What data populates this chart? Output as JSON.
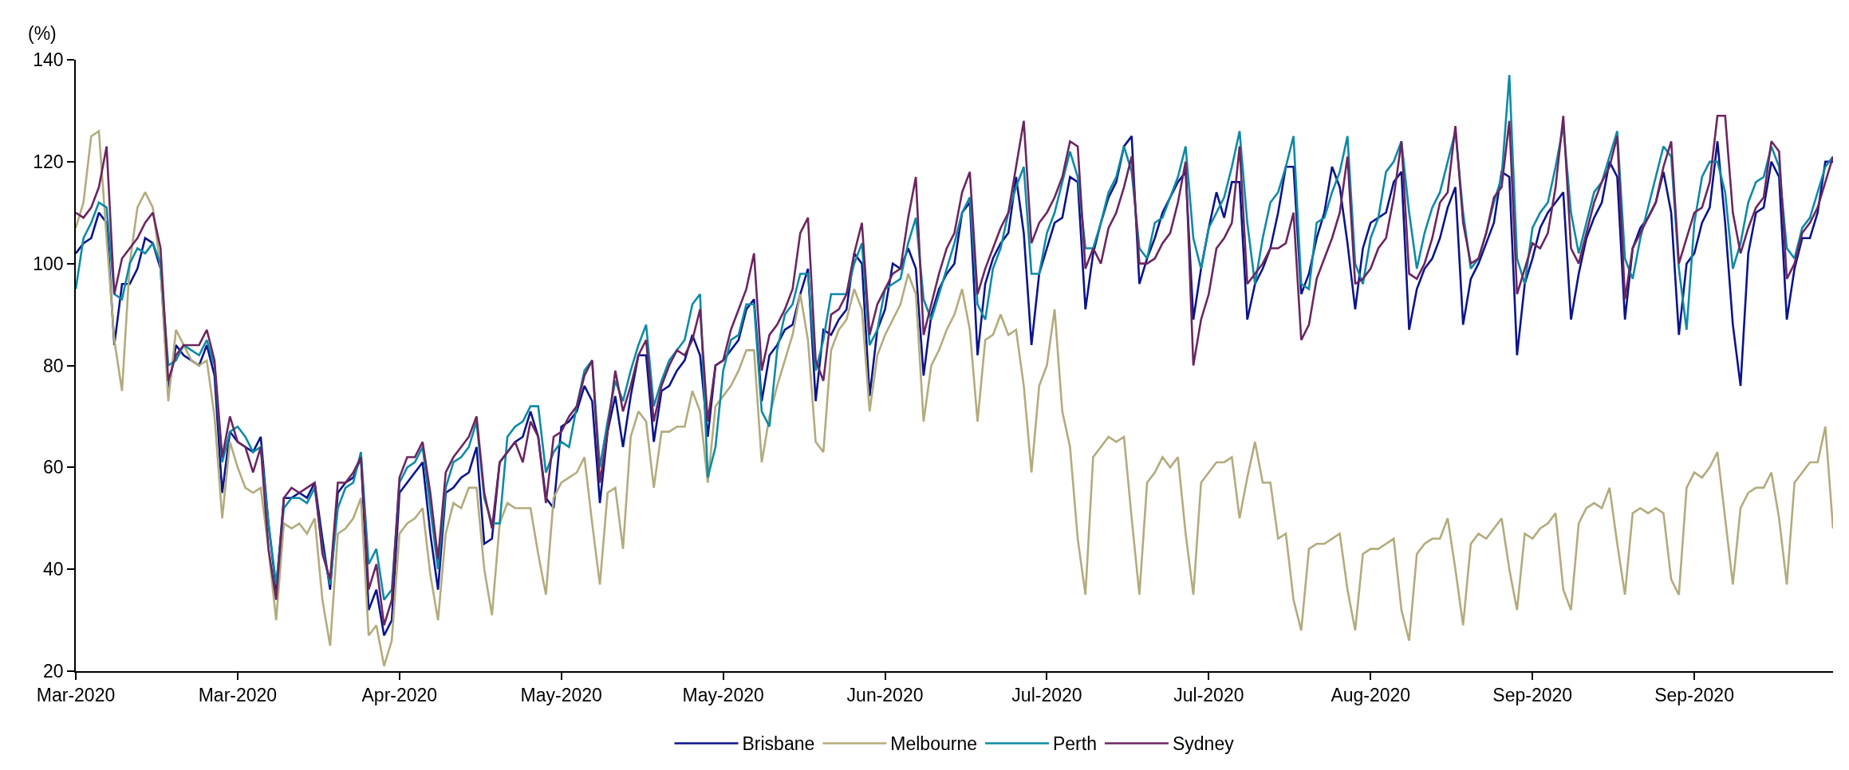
{
  "chart_data": {
    "type": "line",
    "ylabel": "(%)",
    "legend": "bottom",
    "marker": "none",
    "line_style": "solid",
    "xlim": [
      "2020-03-01",
      "2020-10-15"
    ],
    "xticks": [
      {
        "value": "2020-03-01",
        "label": "Mar-2020"
      },
      {
        "value": "2020-03-22",
        "label": "Mar-2020"
      },
      {
        "value": "2020-04-12",
        "label": "Apr-2020"
      },
      {
        "value": "2020-05-03",
        "label": "May-2020"
      },
      {
        "value": "2020-05-24",
        "label": "May-2020"
      },
      {
        "value": "2020-06-14",
        "label": "Jun-2020"
      },
      {
        "value": "2020-07-05",
        "label": "Jul-2020"
      },
      {
        "value": "2020-07-26",
        "label": "Jul-2020"
      },
      {
        "value": "2020-08-16",
        "label": "Aug-2020"
      },
      {
        "value": "2020-09-06",
        "label": "Sep-2020"
      },
      {
        "value": "2020-09-27",
        "label": "Sep-2020"
      }
    ],
    "ylim": [
      20,
      140
    ],
    "yticks": [
      20,
      40,
      60,
      80,
      100,
      120,
      140
    ],
    "x": [
      "2020-03-01",
      "2020-03-02",
      "2020-03-03",
      "2020-03-04",
      "2020-03-05",
      "2020-03-06",
      "2020-03-07",
      "2020-03-08",
      "2020-03-09",
      "2020-03-10",
      "2020-03-11",
      "2020-03-12",
      "2020-03-13",
      "2020-03-14",
      "2020-03-15",
      "2020-03-16",
      "2020-03-17",
      "2020-03-18",
      "2020-03-19",
      "2020-03-20",
      "2020-03-21",
      "2020-03-22",
      "2020-03-23",
      "2020-03-24",
      "2020-03-25",
      "2020-03-26",
      "2020-03-27",
      "2020-03-28",
      "2020-03-29",
      "2020-03-30",
      "2020-03-31",
      "2020-04-01",
      "2020-04-02",
      "2020-04-03",
      "2020-04-04",
      "2020-04-05",
      "2020-04-06",
      "2020-04-07",
      "2020-04-08",
      "2020-04-09",
      "2020-04-10",
      "2020-04-11",
      "2020-04-12",
      "2020-04-13",
      "2020-04-14",
      "2020-04-15",
      "2020-04-16",
      "2020-04-17",
      "2020-04-18",
      "2020-04-19",
      "2020-04-20",
      "2020-04-21",
      "2020-04-22",
      "2020-04-23",
      "2020-04-24",
      "2020-04-25",
      "2020-04-26",
      "2020-04-27",
      "2020-04-28",
      "2020-04-29",
      "2020-04-30",
      "2020-05-01",
      "2020-05-02",
      "2020-05-03",
      "2020-05-04",
      "2020-05-05",
      "2020-05-06",
      "2020-05-07",
      "2020-05-08",
      "2020-05-09",
      "2020-05-10",
      "2020-05-11",
      "2020-05-12",
      "2020-05-13",
      "2020-05-14",
      "2020-05-15",
      "2020-05-16",
      "2020-05-17",
      "2020-05-18",
      "2020-05-19",
      "2020-05-20",
      "2020-05-21",
      "2020-05-22",
      "2020-05-23",
      "2020-05-24",
      "2020-05-25",
      "2020-05-26",
      "2020-05-27",
      "2020-05-28",
      "2020-05-29",
      "2020-05-30",
      "2020-05-31",
      "2020-06-01",
      "2020-06-02",
      "2020-06-03",
      "2020-06-04",
      "2020-06-05",
      "2020-06-06",
      "2020-06-07",
      "2020-06-08",
      "2020-06-09",
      "2020-06-10",
      "2020-06-11",
      "2020-06-12",
      "2020-06-13",
      "2020-06-14",
      "2020-06-15",
      "2020-06-16",
      "2020-06-17",
      "2020-06-18",
      "2020-06-19",
      "2020-06-20",
      "2020-06-21",
      "2020-06-22",
      "2020-06-23",
      "2020-06-24",
      "2020-06-25",
      "2020-06-26",
      "2020-06-27",
      "2020-06-28",
      "2020-06-29",
      "2020-06-30",
      "2020-07-01",
      "2020-07-02",
      "2020-07-03",
      "2020-07-04",
      "2020-07-05",
      "2020-07-06",
      "2020-07-07",
      "2020-07-08",
      "2020-07-09",
      "2020-07-10",
      "2020-07-11",
      "2020-07-12",
      "2020-07-13",
      "2020-07-14",
      "2020-07-15",
      "2020-07-16",
      "2020-07-17",
      "2020-07-18",
      "2020-07-19",
      "2020-07-20",
      "2020-07-21",
      "2020-07-22",
      "2020-07-23",
      "2020-07-24",
      "2020-07-25",
      "2020-07-26",
      "2020-07-27",
      "2020-07-28",
      "2020-07-29",
      "2020-07-30",
      "2020-07-31",
      "2020-08-01",
      "2020-08-02",
      "2020-08-03",
      "2020-08-04",
      "2020-08-05",
      "2020-08-06",
      "2020-08-07",
      "2020-08-08",
      "2020-08-09",
      "2020-08-10",
      "2020-08-11",
      "2020-08-12",
      "2020-08-13",
      "2020-08-14",
      "2020-08-15",
      "2020-08-16",
      "2020-08-17",
      "2020-08-18",
      "2020-08-19",
      "2020-08-20",
      "2020-08-21",
      "2020-08-22",
      "2020-08-23",
      "2020-08-24",
      "2020-08-25",
      "2020-08-26",
      "2020-08-27",
      "2020-08-28",
      "2020-08-29",
      "2020-08-30",
      "2020-08-31",
      "2020-09-01",
      "2020-09-02",
      "2020-09-03",
      "2020-09-04",
      "2020-09-05",
      "2020-09-06",
      "2020-09-07",
      "2020-09-08",
      "2020-09-09",
      "2020-09-10",
      "2020-09-11",
      "2020-09-12",
      "2020-09-13",
      "2020-09-14",
      "2020-09-15",
      "2020-09-16",
      "2020-09-17",
      "2020-09-18",
      "2020-09-19",
      "2020-09-20",
      "2020-09-21",
      "2020-09-22",
      "2020-09-23",
      "2020-09-24",
      "2020-09-25",
      "2020-09-26",
      "2020-09-27",
      "2020-09-28",
      "2020-09-29",
      "2020-09-30",
      "2020-10-01",
      "2020-10-02",
      "2020-10-03",
      "2020-10-04",
      "2020-10-05",
      "2020-10-06",
      "2020-10-07",
      "2020-10-08",
      "2020-10-09",
      "2020-10-10",
      "2020-10-11",
      "2020-10-12",
      "2020-10-13",
      "2020-10-14",
      "2020-10-15"
    ],
    "series": [
      {
        "name": "Brisbane",
        "color": "#0a148c",
        "values": [
          102,
          104,
          105,
          110,
          108,
          84,
          96,
          96,
          99,
          105,
          104,
          99,
          75,
          84,
          82,
          81,
          80,
          84,
          78,
          55,
          67,
          65,
          64,
          63,
          66,
          49,
          36,
          54,
          54,
          55,
          54,
          57,
          46,
          36,
          55,
          57,
          58,
          62,
          32,
          36,
          27,
          30,
          55,
          57,
          59,
          61,
          47,
          36,
          55,
          56,
          58,
          59,
          64,
          45,
          46,
          61,
          63,
          65,
          66,
          71,
          66,
          54,
          52,
          68,
          69,
          71,
          76,
          73,
          53,
          67,
          74,
          64,
          74,
          82,
          82,
          65,
          75,
          76,
          79,
          81,
          86,
          82,
          66,
          80,
          81,
          83,
          85,
          91,
          93,
          73,
          82,
          84,
          87,
          88,
          94,
          99,
          73,
          87,
          86,
          89,
          91,
          102,
          100,
          74,
          87,
          91,
          100,
          99,
          103,
          99,
          78,
          90,
          95,
          98,
          100,
          110,
          112,
          82,
          96,
          101,
          104,
          106,
          117,
          106,
          84,
          98,
          103,
          108,
          109,
          117,
          116,
          91,
          102,
          108,
          113,
          116,
          123,
          125,
          96,
          101,
          105,
          110,
          113,
          116,
          118,
          89,
          99,
          107,
          114,
          109,
          116,
          116,
          89,
          96,
          99,
          103,
          110,
          119,
          119,
          94,
          98,
          105,
          110,
          119,
          115,
          104,
          91,
          103,
          108,
          109,
          110,
          116,
          118,
          87,
          95,
          99,
          101,
          105,
          111,
          115,
          88,
          97,
          100,
          104,
          108,
          118,
          117,
          82,
          96,
          101,
          107,
          110,
          112,
          114,
          89,
          98,
          105,
          109,
          112,
          120,
          117,
          89,
          103,
          107,
          109,
          112,
          118,
          110,
          86,
          100,
          102,
          108,
          111,
          124,
          108,
          88,
          76,
          102,
          110,
          111,
          120,
          117,
          89,
          99,
          105,
          105,
          110,
          120,
          120
        ]
      },
      {
        "name": "Melbourne",
        "color": "#b3ab7d",
        "values": [
          107,
          112,
          125,
          126,
          105,
          85,
          75,
          100,
          111,
          114,
          111,
          99,
          73,
          87,
          84,
          81,
          80,
          81,
          70,
          50,
          65,
          60,
          56,
          55,
          56,
          44,
          30,
          49,
          48,
          49,
          47,
          50,
          34,
          25,
          47,
          48,
          50,
          54,
          27,
          29,
          21,
          26,
          47,
          49,
          50,
          52,
          39,
          30,
          47,
          53,
          52,
          56,
          56,
          40,
          31,
          49,
          53,
          52,
          52,
          52,
          43,
          35,
          54,
          57,
          58,
          59,
          62,
          49,
          37,
          55,
          56,
          44,
          66,
          71,
          69,
          56,
          67,
          67,
          68,
          68,
          75,
          71,
          57,
          72,
          74,
          76,
          79,
          83,
          83,
          61,
          70,
          76,
          81,
          86,
          94,
          85,
          65,
          63,
          83,
          87,
          89,
          95,
          91,
          71,
          82,
          86,
          89,
          92,
          98,
          94,
          69,
          80,
          83,
          87,
          90,
          95,
          87,
          69,
          85,
          86,
          90,
          86,
          87,
          76,
          59,
          76,
          80,
          91,
          71,
          64,
          46,
          35,
          62,
          64,
          66,
          65,
          66,
          50,
          35,
          57,
          59,
          62,
          60,
          62,
          47,
          35,
          57,
          59,
          61,
          61,
          62,
          50,
          58,
          65,
          57,
          57,
          46,
          47,
          34,
          28,
          44,
          45,
          45,
          46,
          47,
          36,
          28,
          43,
          44,
          44,
          45,
          46,
          32,
          26,
          43,
          45,
          46,
          46,
          50,
          40,
          29,
          45,
          47,
          46,
          48,
          50,
          40,
          32,
          47,
          46,
          48,
          49,
          51,
          36,
          32,
          49,
          52,
          53,
          52,
          56,
          45,
          35,
          51,
          52,
          51,
          52,
          51,
          38,
          35,
          56,
          59,
          58,
          60,
          63,
          50,
          37,
          52,
          55,
          56,
          56,
          59,
          50,
          37,
          57,
          59,
          61,
          61,
          68,
          48
        ]
      },
      {
        "name": "Perth",
        "color": "#0d8aa6",
        "values": [
          95,
          105,
          108,
          112,
          111,
          94,
          93,
          100,
          103,
          102,
          104,
          100,
          80,
          81,
          84,
          83,
          82,
          85,
          80,
          61,
          67,
          68,
          66,
          63,
          64,
          49,
          37,
          52,
          54,
          54,
          53,
          56,
          44,
          37,
          52,
          56,
          57,
          63,
          41,
          44,
          34,
          36,
          57,
          60,
          61,
          64,
          52,
          40,
          56,
          61,
          62,
          64,
          69,
          54,
          49,
          49,
          66,
          68,
          69,
          72,
          72,
          59,
          63,
          65,
          64,
          72,
          79,
          81,
          60,
          69,
          77,
          73,
          79,
          84,
          88,
          72,
          77,
          81,
          83,
          85,
          92,
          94,
          58,
          64,
          79,
          85,
          86,
          92,
          92,
          71,
          68,
          83,
          90,
          92,
          98,
          98,
          79,
          85,
          94,
          94,
          94,
          100,
          104,
          84,
          87,
          95,
          96,
          97,
          104,
          109,
          93,
          89,
          94,
          99,
          104,
          110,
          113,
          92,
          89,
          99,
          103,
          110,
          115,
          119,
          98,
          98,
          106,
          110,
          116,
          122,
          117,
          103,
          103,
          108,
          114,
          117,
          123,
          118,
          103,
          101,
          108,
          109,
          113,
          117,
          123,
          105,
          99,
          107,
          110,
          113,
          119,
          126,
          108,
          96,
          105,
          112,
          114,
          119,
          125,
          96,
          95,
          108,
          109,
          114,
          118,
          125,
          100,
          96,
          105,
          109,
          118,
          120,
          124,
          110,
          99,
          106,
          111,
          114,
          120,
          126,
          110,
          99,
          101,
          106,
          112,
          117,
          137,
          101,
          96,
          107,
          110,
          112,
          119,
          127,
          110,
          102,
          108,
          114,
          116,
          121,
          126,
          101,
          97,
          105,
          111,
          117,
          123,
          121,
          99,
          87,
          108,
          117,
          120,
          120,
          114,
          99,
          104,
          112,
          116,
          117,
          123,
          119,
          103,
          101,
          107,
          109,
          114,
          119,
          121
        ]
      },
      {
        "name": "Sydney",
        "color": "#6b2660",
        "values": [
          110,
          109,
          111,
          115,
          123,
          94,
          101,
          103,
          105,
          108,
          110,
          103,
          77,
          82,
          84,
          84,
          84,
          87,
          81,
          62,
          70,
          65,
          64,
          59,
          64,
          44,
          34,
          54,
          56,
          55,
          56,
          57,
          43,
          38,
          57,
          57,
          59,
          62,
          36,
          41,
          29,
          34,
          58,
          62,
          62,
          65,
          55,
          42,
          59,
          62,
          64,
          66,
          70,
          55,
          48,
          61,
          63,
          65,
          61,
          69,
          66,
          53,
          66,
          67,
          70,
          72,
          78,
          81,
          57,
          67,
          79,
          71,
          76,
          82,
          85,
          69,
          76,
          80,
          83,
          82,
          85,
          91,
          69,
          80,
          81,
          87,
          91,
          95,
          102,
          79,
          86,
          88,
          91,
          95,
          106,
          109,
          81,
          77,
          90,
          91,
          94,
          102,
          108,
          86,
          92,
          95,
          98,
          99,
          109,
          117,
          86,
          92,
          98,
          103,
          106,
          114,
          118,
          94,
          99,
          103,
          107,
          110,
          119,
          128,
          104,
          108,
          110,
          113,
          117,
          124,
          123,
          99,
          103,
          100,
          107,
          110,
          115,
          121,
          100,
          100,
          101,
          104,
          106,
          112,
          120,
          80,
          89,
          94,
          103,
          105,
          108,
          123,
          96,
          98,
          100,
          103,
          103,
          104,
          110,
          85,
          88,
          97,
          101,
          105,
          110,
          121,
          96,
          97,
          99,
          103,
          105,
          113,
          124,
          98,
          97,
          100,
          105,
          112,
          114,
          127,
          108,
          100,
          101,
          106,
          113,
          115,
          128,
          94,
          99,
          104,
          103,
          106,
          115,
          129,
          103,
          100,
          106,
          112,
          116,
          119,
          125,
          93,
          103,
          106,
          109,
          112,
          119,
          124,
          100,
          105,
          110,
          111,
          116,
          129,
          129,
          110,
          102,
          107,
          111,
          113,
          124,
          122,
          97,
          100,
          106,
          108,
          111,
          116,
          121
        ]
      }
    ]
  }
}
